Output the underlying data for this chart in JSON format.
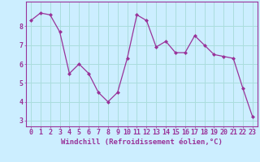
{
  "x": [
    0,
    1,
    2,
    3,
    4,
    5,
    6,
    7,
    8,
    9,
    10,
    11,
    12,
    13,
    14,
    15,
    16,
    17,
    18,
    19,
    20,
    21,
    22,
    23
  ],
  "y": [
    8.3,
    8.7,
    8.6,
    7.7,
    5.5,
    6.0,
    5.5,
    4.5,
    4.0,
    4.5,
    6.3,
    8.6,
    8.3,
    6.9,
    7.2,
    6.6,
    6.6,
    7.5,
    7.0,
    6.5,
    6.4,
    6.3,
    4.7,
    3.2
  ],
  "line_color": "#993399",
  "marker_color": "#993399",
  "bg_color": "#cceeff",
  "grid_color": "#aadddd",
  "axis_color": "#993399",
  "tick_color": "#993399",
  "xlabel": "Windchill (Refroidissement éolien,°C)",
  "ylabel": "",
  "yticks": [
    3,
    4,
    5,
    6,
    7,
    8
  ],
  "ylim": [
    2.7,
    9.3
  ],
  "xlim": [
    -0.5,
    23.5
  ],
  "xlabel_fontsize": 6.5,
  "tick_fontsize": 6.0
}
